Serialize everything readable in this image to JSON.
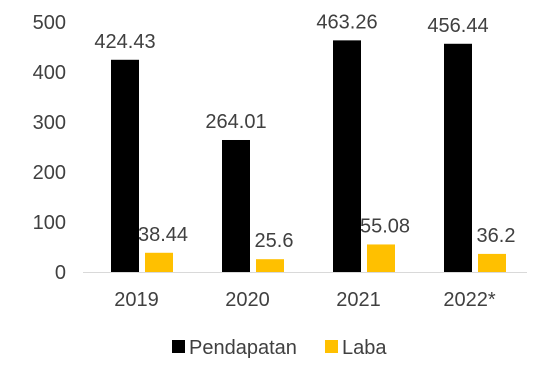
{
  "chart_data": {
    "type": "bar",
    "categories": [
      "2019",
      "2020",
      "2021",
      "2022*"
    ],
    "series": [
      {
        "name": "Pendapatan",
        "values": [
          424.43,
          264.01,
          463.26,
          456.44
        ],
        "labels": [
          "424.43",
          "264.01",
          "463.26",
          "456.44"
        ],
        "color": "#000000"
      },
      {
        "name": "Laba",
        "values": [
          38.44,
          25.6,
          55.08,
          36.2
        ],
        "labels": [
          "38.44",
          "25.6",
          "55.08",
          "36.2"
        ],
        "color": "#FFC000"
      }
    ],
    "ylim": [
      0,
      500
    ],
    "yticks": [
      0,
      100,
      200,
      300,
      400,
      500
    ],
    "ytick_labels": [
      "0",
      "100",
      "200",
      "300",
      "400",
      "500"
    ],
    "grid": false,
    "legend_position": "bottom"
  }
}
